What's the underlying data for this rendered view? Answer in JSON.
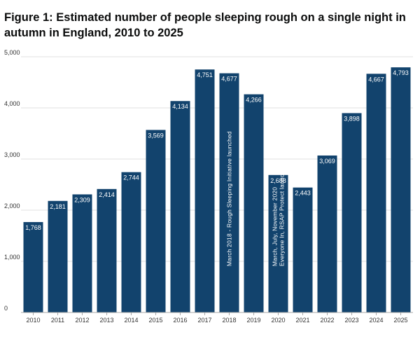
{
  "title": "Figure 1: Estimated number of people sleeping rough on a single night in autumn in England, 2010 to 2025",
  "colors": {
    "bar": "#12436d",
    "grid": "#e2e2e2",
    "axis": "#a8a8a8",
    "text": "#333333"
  },
  "chart_data": {
    "type": "bar",
    "title": "Figure 1: Estimated number of people sleeping rough on a single night in autumn in England, 2010 to 2025",
    "xlabel": "",
    "ylabel": "",
    "categories": [
      "2010",
      "2011",
      "2012",
      "2013",
      "2014",
      "2015",
      "2016",
      "2017",
      "2018",
      "2019",
      "2020",
      "2021",
      "2022",
      "2023",
      "2024",
      "2025"
    ],
    "values": [
      1768,
      2181,
      2309,
      2414,
      2744,
      3569,
      4134,
      4751,
      4677,
      4266,
      2688,
      2443,
      3069,
      3898,
      4667,
      4793
    ],
    "data_labels": [
      "1,768",
      "2,181",
      "2,309",
      "2,414",
      "2,744",
      "3,569",
      "4,134",
      "4,751",
      "4,677",
      "4,266",
      "2,688",
      "2,443",
      "3,069",
      "3,898",
      "4,667",
      "4,793"
    ],
    "ylim": [
      0,
      5000
    ],
    "yticks": [
      0,
      1000,
      2000,
      3000,
      4000,
      5000
    ],
    "ytick_labels": [
      "0",
      "1,000",
      "2,000",
      "3,000",
      "4,000",
      "5,000"
    ],
    "grid": true,
    "legend": "none",
    "annotations": [
      {
        "category": "2018",
        "lines": [
          "March 2018 - Rough Sleeping Initiative launched"
        ]
      },
      {
        "category": "2020",
        "lines": [
          "March, July, November 2020",
          "Everyone In, RSAP Protect launched"
        ]
      }
    ]
  }
}
